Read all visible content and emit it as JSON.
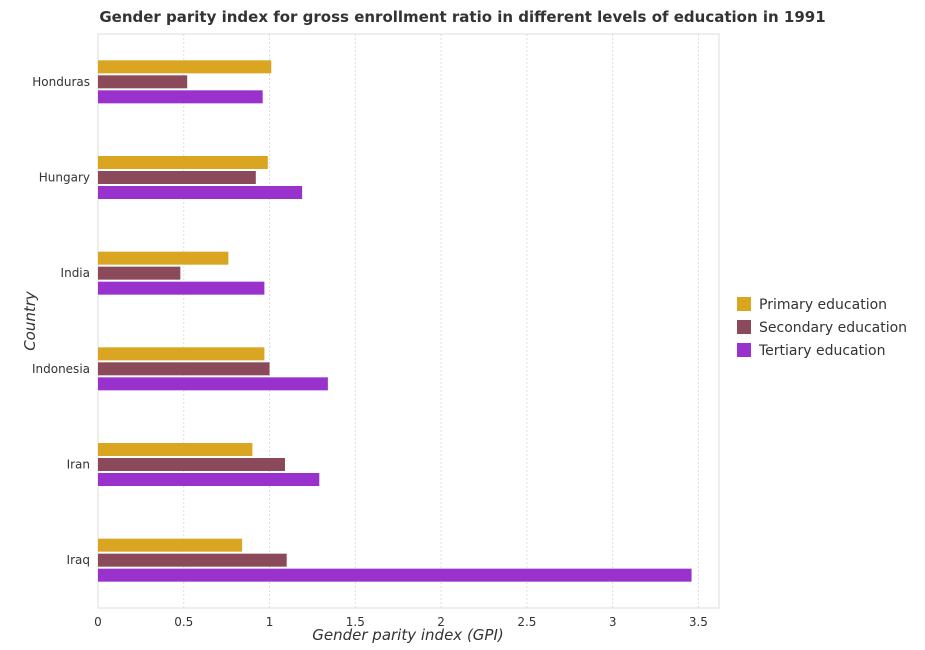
{
  "chart_data": {
    "type": "bar",
    "orientation": "horizontal",
    "title": "Gender parity index for gross enrollment ratio in different levels of education in 1991",
    "xlabel": "Gender parity index (GPI)",
    "ylabel": "Country",
    "categories": [
      "Honduras",
      "Hungary",
      "India",
      "Indonesia",
      "Iran",
      "Iraq"
    ],
    "xlim": [
      0,
      3.62
    ],
    "xticks": [
      "0",
      "0.5",
      "1",
      "1.5",
      "2",
      "2.5",
      "3",
      "3.5"
    ],
    "grid": true,
    "legend_position": "right",
    "series": [
      {
        "name": "Primary education",
        "color": "#DAA520",
        "values": [
          1.01,
          0.99,
          0.76,
          0.97,
          0.9,
          0.84
        ]
      },
      {
        "name": "Secondary education",
        "color": "#8B4A5A",
        "values": [
          0.52,
          0.92,
          0.48,
          1.0,
          1.09,
          1.1
        ]
      },
      {
        "name": "Tertiary education",
        "color": "#9932CC",
        "values": [
          0.96,
          1.19,
          0.97,
          1.34,
          1.29,
          3.46
        ]
      }
    ]
  }
}
